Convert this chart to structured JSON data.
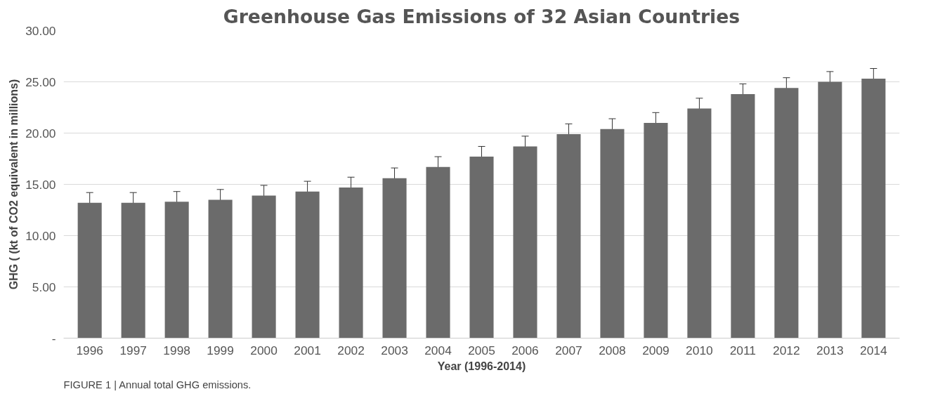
{
  "chart_data": {
    "type": "bar",
    "title": "Greenhouse Gas Emissions of 32 Asian Countries",
    "xlabel": "Year (1996-2014)",
    "ylabel": "GHG ( (kt of CO2 equivalent in millions)",
    "categories": [
      "1996",
      "1997",
      "1998",
      "1999",
      "2000",
      "2001",
      "2002",
      "2003",
      "2004",
      "2005",
      "2006",
      "2007",
      "2008",
      "2009",
      "2010",
      "2011",
      "2012",
      "2013",
      "2014"
    ],
    "values": [
      13.2,
      13.2,
      13.3,
      13.5,
      13.9,
      14.3,
      14.7,
      15.6,
      16.7,
      17.7,
      18.7,
      19.9,
      20.4,
      21.0,
      22.4,
      23.8,
      24.4,
      25.0,
      25.3
    ],
    "errors": [
      1.0,
      1.0,
      1.0,
      1.0,
      1.0,
      1.0,
      1.0,
      1.0,
      1.0,
      1.0,
      1.0,
      1.0,
      1.0,
      1.0,
      1.0,
      1.0,
      1.0,
      1.0,
      1.0
    ],
    "color": "#6b6b6b",
    "ylim": [
      0,
      30
    ],
    "yticks": [
      {
        "value": 0,
        "label": "-"
      },
      {
        "value": 5,
        "label": "5.00"
      },
      {
        "value": 10,
        "label": "10.00"
      },
      {
        "value": 15,
        "label": "15.00"
      },
      {
        "value": 20,
        "label": "20.00"
      },
      {
        "value": 25,
        "label": "25.00"
      },
      {
        "value": 30,
        "label": "30.00"
      }
    ],
    "grid": "y",
    "annotations": [
      "FIGURE 1 | Annual total GHG emissions."
    ]
  }
}
